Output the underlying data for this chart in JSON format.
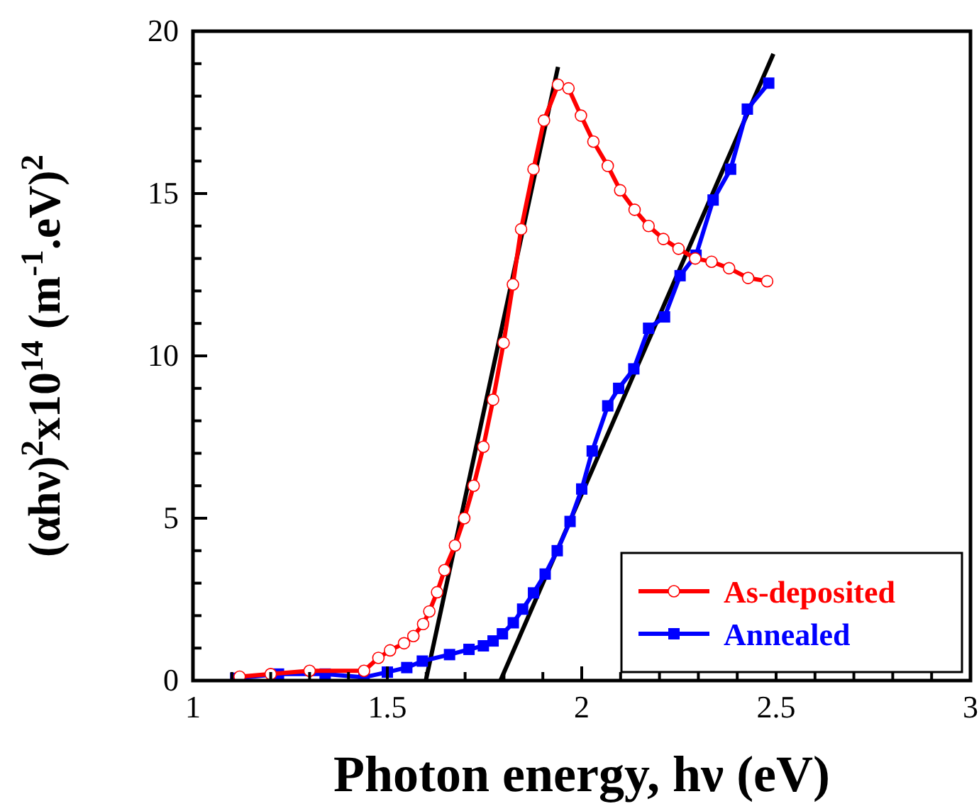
{
  "chart_data": {
    "type": "line",
    "xlabel": "Photon energy, hν (eV)",
    "ylabel": "(αhν)$^{2}$x10$^{14}$ (m$^{-1}$.eV)$^{2}$",
    "xlim": [
      1,
      3
    ],
    "ylim": [
      0,
      20
    ],
    "xticks": [
      1,
      {
        "value": 1.1,
        "label": null
      },
      {
        "value": 1.2,
        "label": null
      },
      {
        "value": 1.3,
        "label": null
      },
      {
        "value": 1.4,
        "label": null
      },
      1.5,
      {
        "value": 1.6,
        "label": null
      },
      {
        "value": 1.7,
        "label": null
      },
      {
        "value": 1.8,
        "label": null
      },
      {
        "value": 1.9,
        "label": null
      },
      2,
      {
        "value": 2.1,
        "label": null
      },
      {
        "value": 2.2,
        "label": null
      },
      {
        "value": 2.3,
        "label": null
      },
      {
        "value": 2.4,
        "label": null
      },
      2.5,
      {
        "value": 2.6,
        "label": null
      },
      {
        "value": 2.7,
        "label": null
      },
      {
        "value": 2.8,
        "label": null
      },
      {
        "value": 2.9,
        "label": null
      },
      3
    ],
    "yticks": [
      0,
      {
        "value": 1,
        "label": null
      },
      {
        "value": 2,
        "label": null
      },
      {
        "value": 3,
        "label": null
      },
      {
        "value": 4,
        "label": null
      },
      5,
      {
        "value": 6,
        "label": null
      },
      {
        "value": 7,
        "label": null
      },
      {
        "value": 8,
        "label": null
      },
      {
        "value": 9,
        "label": null
      },
      10,
      {
        "value": 11,
        "label": null
      },
      {
        "value": 12,
        "label": null
      },
      {
        "value": 13,
        "label": null
      },
      {
        "value": 14,
        "label": null
      },
      15,
      {
        "value": 16,
        "label": null
      },
      {
        "value": 17,
        "label": null
      },
      {
        "value": 18,
        "label": null
      },
      {
        "value": 19,
        "label": null
      },
      20
    ],
    "grid": false,
    "legend": "bottom right",
    "line_style": "solid",
    "series": [
      {
        "name": "As-deposited",
        "color": "#ff0000",
        "marker": "circle",
        "x": [
          1.12,
          1.2,
          1.3,
          1.44,
          1.477,
          1.507,
          1.543,
          1.567,
          1.592,
          1.608,
          1.628,
          1.647,
          1.674,
          1.698,
          1.722,
          1.747,
          1.772,
          1.799,
          1.823,
          1.844,
          1.876,
          1.903,
          1.939,
          1.966,
          1.998,
          2.03,
          2.067,
          2.099,
          2.136,
          2.172,
          2.21,
          2.249,
          2.292,
          2.334,
          2.379,
          2.428,
          2.477
        ],
        "values": [
          0.12,
          0.2,
          0.3,
          0.3,
          0.7,
          0.93,
          1.15,
          1.37,
          1.74,
          2.13,
          2.72,
          3.4,
          4.16,
          5.0,
          6.0,
          7.2,
          8.65,
          10.4,
          12.2,
          13.9,
          15.75,
          17.25,
          18.35,
          18.24,
          17.4,
          16.6,
          15.85,
          15.1,
          14.5,
          14.0,
          13.6,
          13.3,
          13.0,
          12.9,
          12.7,
          12.4,
          12.3
        ]
      },
      {
        "name": "Annealed",
        "color": "#0000ff",
        "marker": "square",
        "x": [
          1.11,
          1.22,
          1.34,
          1.44,
          1.5,
          1.55,
          1.59,
          1.66,
          1.71,
          1.747,
          1.772,
          1.796,
          1.824,
          1.848,
          1.876,
          1.906,
          1.937,
          1.97,
          2.0,
          2.027,
          2.067,
          2.095,
          2.134,
          2.172,
          2.213,
          2.253,
          2.294,
          2.338,
          2.383,
          2.426,
          2.481
        ],
        "values": [
          0.07,
          0.2,
          0.2,
          0.1,
          0.26,
          0.4,
          0.6,
          0.8,
          0.96,
          1.07,
          1.22,
          1.44,
          1.78,
          2.2,
          2.7,
          3.28,
          4.0,
          4.9,
          5.9,
          7.07,
          8.46,
          9.0,
          9.6,
          10.85,
          11.2,
          12.47,
          13.1,
          14.8,
          15.75,
          17.6,
          18.4
        ]
      },
      {
        "color": "#000000",
        "marker": "none",
        "x": [
          1.599,
          1.939
        ],
        "values": [
          0,
          18.9
        ]
      },
      {
        "color": "#000000",
        "marker": "none",
        "x": [
          1.791,
          2.493
        ],
        "values": [
          0,
          19.3
        ]
      }
    ]
  }
}
